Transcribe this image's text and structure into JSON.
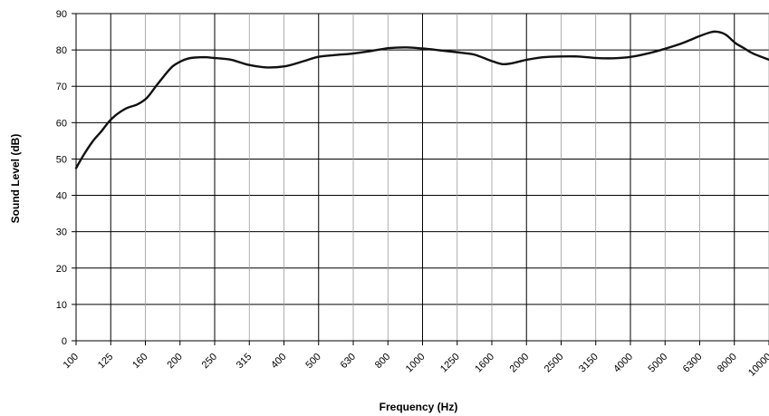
{
  "chart_data": {
    "type": "line",
    "title": "",
    "xlabel": "Frequency (Hz)",
    "ylabel": "Sound Level (dB)",
    "ylim": [
      0,
      90
    ],
    "yticks": [
      0,
      10,
      20,
      30,
      40,
      50,
      60,
      70,
      80,
      90
    ],
    "x_scale": "log",
    "x_categories": [
      "100",
      "125",
      "160",
      "200",
      "250",
      "315",
      "400",
      "500",
      "630",
      "800",
      "1000",
      "1250",
      "1600",
      "2000",
      "2500",
      "3150",
      "4000",
      "5000",
      "6300",
      "8000",
      "10000"
    ],
    "grid": true,
    "legend": "none",
    "colors": {
      "line": "#111111",
      "major_grid": "#000000",
      "minor_grid": "#9a9a9a"
    },
    "series": [
      {
        "x": [
          100,
          105,
          112,
          118,
          125,
          132,
          140,
          150,
          160,
          170,
          180,
          190,
          200,
          210,
          220,
          235,
          250,
          280,
          315,
          355,
          400,
          450,
          500,
          560,
          630,
          710,
          800,
          900,
          1000,
          1120,
          1250,
          1400,
          1500,
          1600,
          1700,
          1800,
          1900,
          2000,
          2240,
          2500,
          2800,
          3150,
          3550,
          4000,
          4500,
          5000,
          5600,
          6300,
          6800,
          7100,
          7500,
          8000,
          8500,
          9000,
          10000
        ],
        "y": [
          47.5,
          51,
          55,
          57.5,
          60.5,
          62.5,
          64,
          65,
          66.8,
          70,
          73,
          75.5,
          76.8,
          77.6,
          77.9,
          78,
          77.8,
          77.3,
          75.9,
          75.2,
          75.5,
          76.8,
          78.1,
          78.6,
          79,
          79.7,
          80.5,
          80.7,
          80.4,
          79.9,
          79.4,
          78.8,
          77.8,
          76.8,
          76.1,
          76.3,
          76.8,
          77.3,
          78,
          78.2,
          78.2,
          77.8,
          77.7,
          78.1,
          79.1,
          80.3,
          81.8,
          83.8,
          84.9,
          85,
          84.2,
          81.9,
          80.4,
          79,
          77.3
        ]
      }
    ]
  }
}
